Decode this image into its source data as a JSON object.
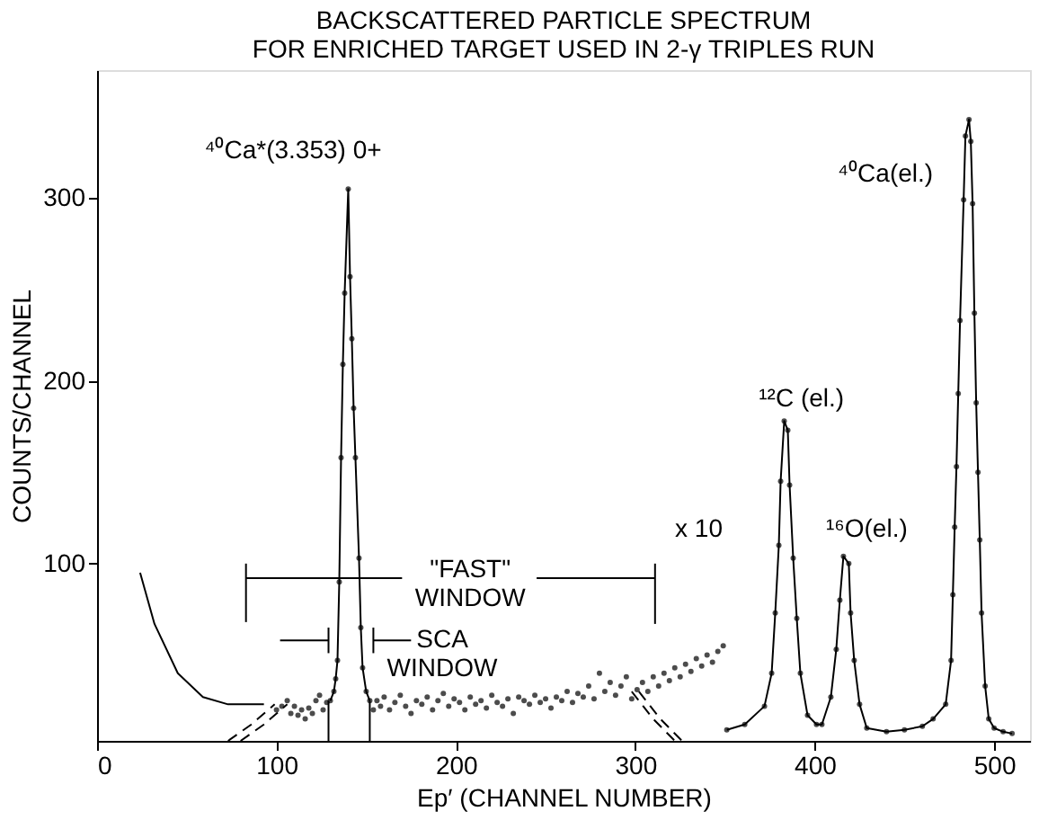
{
  "chart_data": {
    "type": "scatter",
    "title": [
      "BACKSCATTERED PARTICLE SPECTRUM",
      "FOR ENRICHED TARGET USED IN 2-γ TRIPLES RUN"
    ],
    "xlabel": "Ep′ (CHANNEL NUMBER)",
    "ylabel": "COUNTS/CHANNEL",
    "xlim": [
      0,
      520
    ],
    "xticks": [
      0,
      100,
      200,
      300,
      400,
      500
    ],
    "ylim": [
      3,
      370
    ],
    "yticks": [
      100,
      200,
      300
    ],
    "grid": false,
    "series": [
      {
        "color": "#000000",
        "marker": "circle",
        "x": [
          100,
          103,
          106,
          108,
          110,
          112,
          114,
          116,
          118,
          120,
          122,
          124,
          126,
          128,
          154,
          156,
          158,
          160,
          163,
          166,
          169,
          172,
          175,
          178,
          181,
          184,
          187,
          190,
          193,
          196,
          199,
          202,
          205,
          208,
          211,
          214,
          217,
          220,
          223,
          226,
          229,
          232,
          235,
          238,
          241,
          244,
          247,
          250,
          253,
          256,
          259,
          262,
          265,
          268,
          271,
          274,
          277,
          280,
          283,
          286,
          289,
          292,
          295,
          298,
          301,
          304,
          307,
          310,
          313,
          316,
          319,
          322,
          325,
          328,
          331,
          334,
          337,
          340,
          343,
          346,
          349
        ],
        "values": [
          20,
          22,
          25,
          18,
          22,
          17,
          20,
          15,
          21,
          18,
          25,
          28,
          20,
          24,
          20,
          25,
          22,
          27,
          20,
          24,
          28,
          22,
          18,
          25,
          23,
          27,
          20,
          25,
          29,
          22,
          26,
          24,
          20,
          27,
          23,
          25,
          21,
          28,
          24,
          22,
          26,
          18,
          27,
          25,
          23,
          28,
          24,
          26,
          21,
          27,
          25,
          30,
          24,
          29,
          27,
          33,
          26,
          40,
          30,
          35,
          28,
          33,
          38,
          26,
          31,
          35,
          30,
          38,
          33,
          40,
          36,
          43,
          38,
          45,
          41,
          48,
          44,
          50,
          46,
          52,
          55
        ]
      },
      {
        "type": "line",
        "color": "#000000",
        "marker": "circle",
        "line_style": "solid",
        "x": [
          130,
          132,
          133,
          134,
          135,
          136,
          137,
          138,
          140,
          141,
          142,
          143,
          144,
          146,
          147,
          148,
          150,
          152
        ],
        "values": [
          25,
          30,
          37,
          47,
          90,
          158,
          209,
          248,
          305,
          257,
          223,
          185,
          158,
          103,
          65,
          43,
          30,
          25
        ]
      },
      {
        "type": "line",
        "color": "#000000",
        "marker": "circle",
        "line_style": "solid",
        "x": [
          351,
          361,
          372,
          376,
          378,
          380,
          381,
          383,
          385,
          386,
          388,
          390,
          392,
          396,
          401,
          404,
          409,
          412,
          414,
          416,
          419,
          420,
          422,
          425,
          429,
          440,
          450,
          460,
          466,
          473,
          476,
          477,
          478,
          479,
          480,
          481,
          483,
          484,
          486,
          487,
          488,
          489,
          490,
          491,
          492,
          493,
          495,
          497,
          500,
          505,
          510
        ],
        "values": [
          9,
          12,
          22,
          40,
          73,
          110,
          145,
          178,
          173,
          143,
          103,
          70,
          40,
          17,
          12,
          12,
          27,
          53,
          80,
          104,
          100,
          73,
          47,
          23,
          10,
          8,
          9,
          11,
          15,
          23,
          47,
          83,
          120,
          153,
          193,
          233,
          299,
          334,
          343,
          331,
          297,
          237,
          188,
          150,
          113,
          73,
          33,
          15,
          10,
          8,
          7
        ]
      },
      {
        "type": "line",
        "color": "#000000",
        "marker": "none",
        "line_style": "solid",
        "x": [
          24,
          32,
          45,
          59,
          73,
          93
        ],
        "values": [
          95,
          67,
          40,
          27,
          23,
          23
        ]
      },
      {
        "type": "line",
        "color": "#000000",
        "marker": "none",
        "line_style": "dashed",
        "x": [
          73,
          86,
          99
        ],
        "values": [
          3,
          12,
          23
        ]
      },
      {
        "type": "line",
        "color": "#000000",
        "marker": "none",
        "line_style": "dashed",
        "x": [
          80,
          93,
          106
        ],
        "values": [
          3,
          12,
          23
        ]
      },
      {
        "type": "line",
        "color": "#000000",
        "marker": "none",
        "line_style": "dashed",
        "x": [
          298,
          310,
          322
        ],
        "values": [
          30,
          15,
          3
        ]
      },
      {
        "type": "line",
        "color": "#000000",
        "marker": "none",
        "line_style": "dashed",
        "x": [
          302,
          314,
          326
        ],
        "values": [
          30,
          15,
          3
        ]
      },
      {
        "type": "line",
        "color": "#000000",
        "marker": "none",
        "line_style": "solid",
        "x": [
          129,
          129
        ],
        "values": [
          3,
          25
        ]
      },
      {
        "type": "line",
        "color": "#000000",
        "marker": "none",
        "line_style": "solid",
        "x": [
          152,
          152
        ],
        "values": [
          3,
          25
        ]
      },
      {
        "type": "line",
        "color": "#000000",
        "marker": "none",
        "line_style": "solid",
        "x": [
          83,
          170
        ],
        "values": [
          92,
          92
        ]
      },
      {
        "type": "line",
        "color": "#000000",
        "marker": "none",
        "line_style": "solid",
        "x": [
          245,
          311
        ],
        "values": [
          92,
          92
        ]
      },
      {
        "type": "line",
        "color": "#000000",
        "marker": "none",
        "line_style": "solid",
        "x": [
          83,
          83
        ],
        "values": [
          68,
          100
        ]
      },
      {
        "type": "line",
        "color": "#000000",
        "marker": "none",
        "line_style": "solid",
        "x": [
          311,
          311
        ],
        "values": [
          67,
          100
        ]
      },
      {
        "type": "line",
        "color": "#000000",
        "marker": "none",
        "line_style": "solid",
        "x": [
          102,
          129
        ],
        "values": [
          58,
          58
        ]
      },
      {
        "type": "line",
        "color": "#000000",
        "marker": "none",
        "line_style": "solid",
        "x": [
          129,
          129
        ],
        "values": [
          51,
          65
        ]
      },
      {
        "type": "line",
        "color": "#000000",
        "marker": "none",
        "line_style": "solid",
        "x": [
          154,
          175
        ],
        "values": [
          58,
          58
        ]
      },
      {
        "type": "line",
        "color": "#000000",
        "marker": "none",
        "line_style": "solid",
        "x": [
          154,
          154
        ],
        "values": [
          51,
          65
        ]
      }
    ],
    "annotations": [
      "⁴⁰Ca*(3.353) 0+",
      "⁴⁰Ca(el.)",
      "¹²C (el.)",
      "¹⁶O(el.)",
      "x 10",
      "\"FAST\"\nWINDOW",
      "SCA\nWINDOW"
    ]
  }
}
